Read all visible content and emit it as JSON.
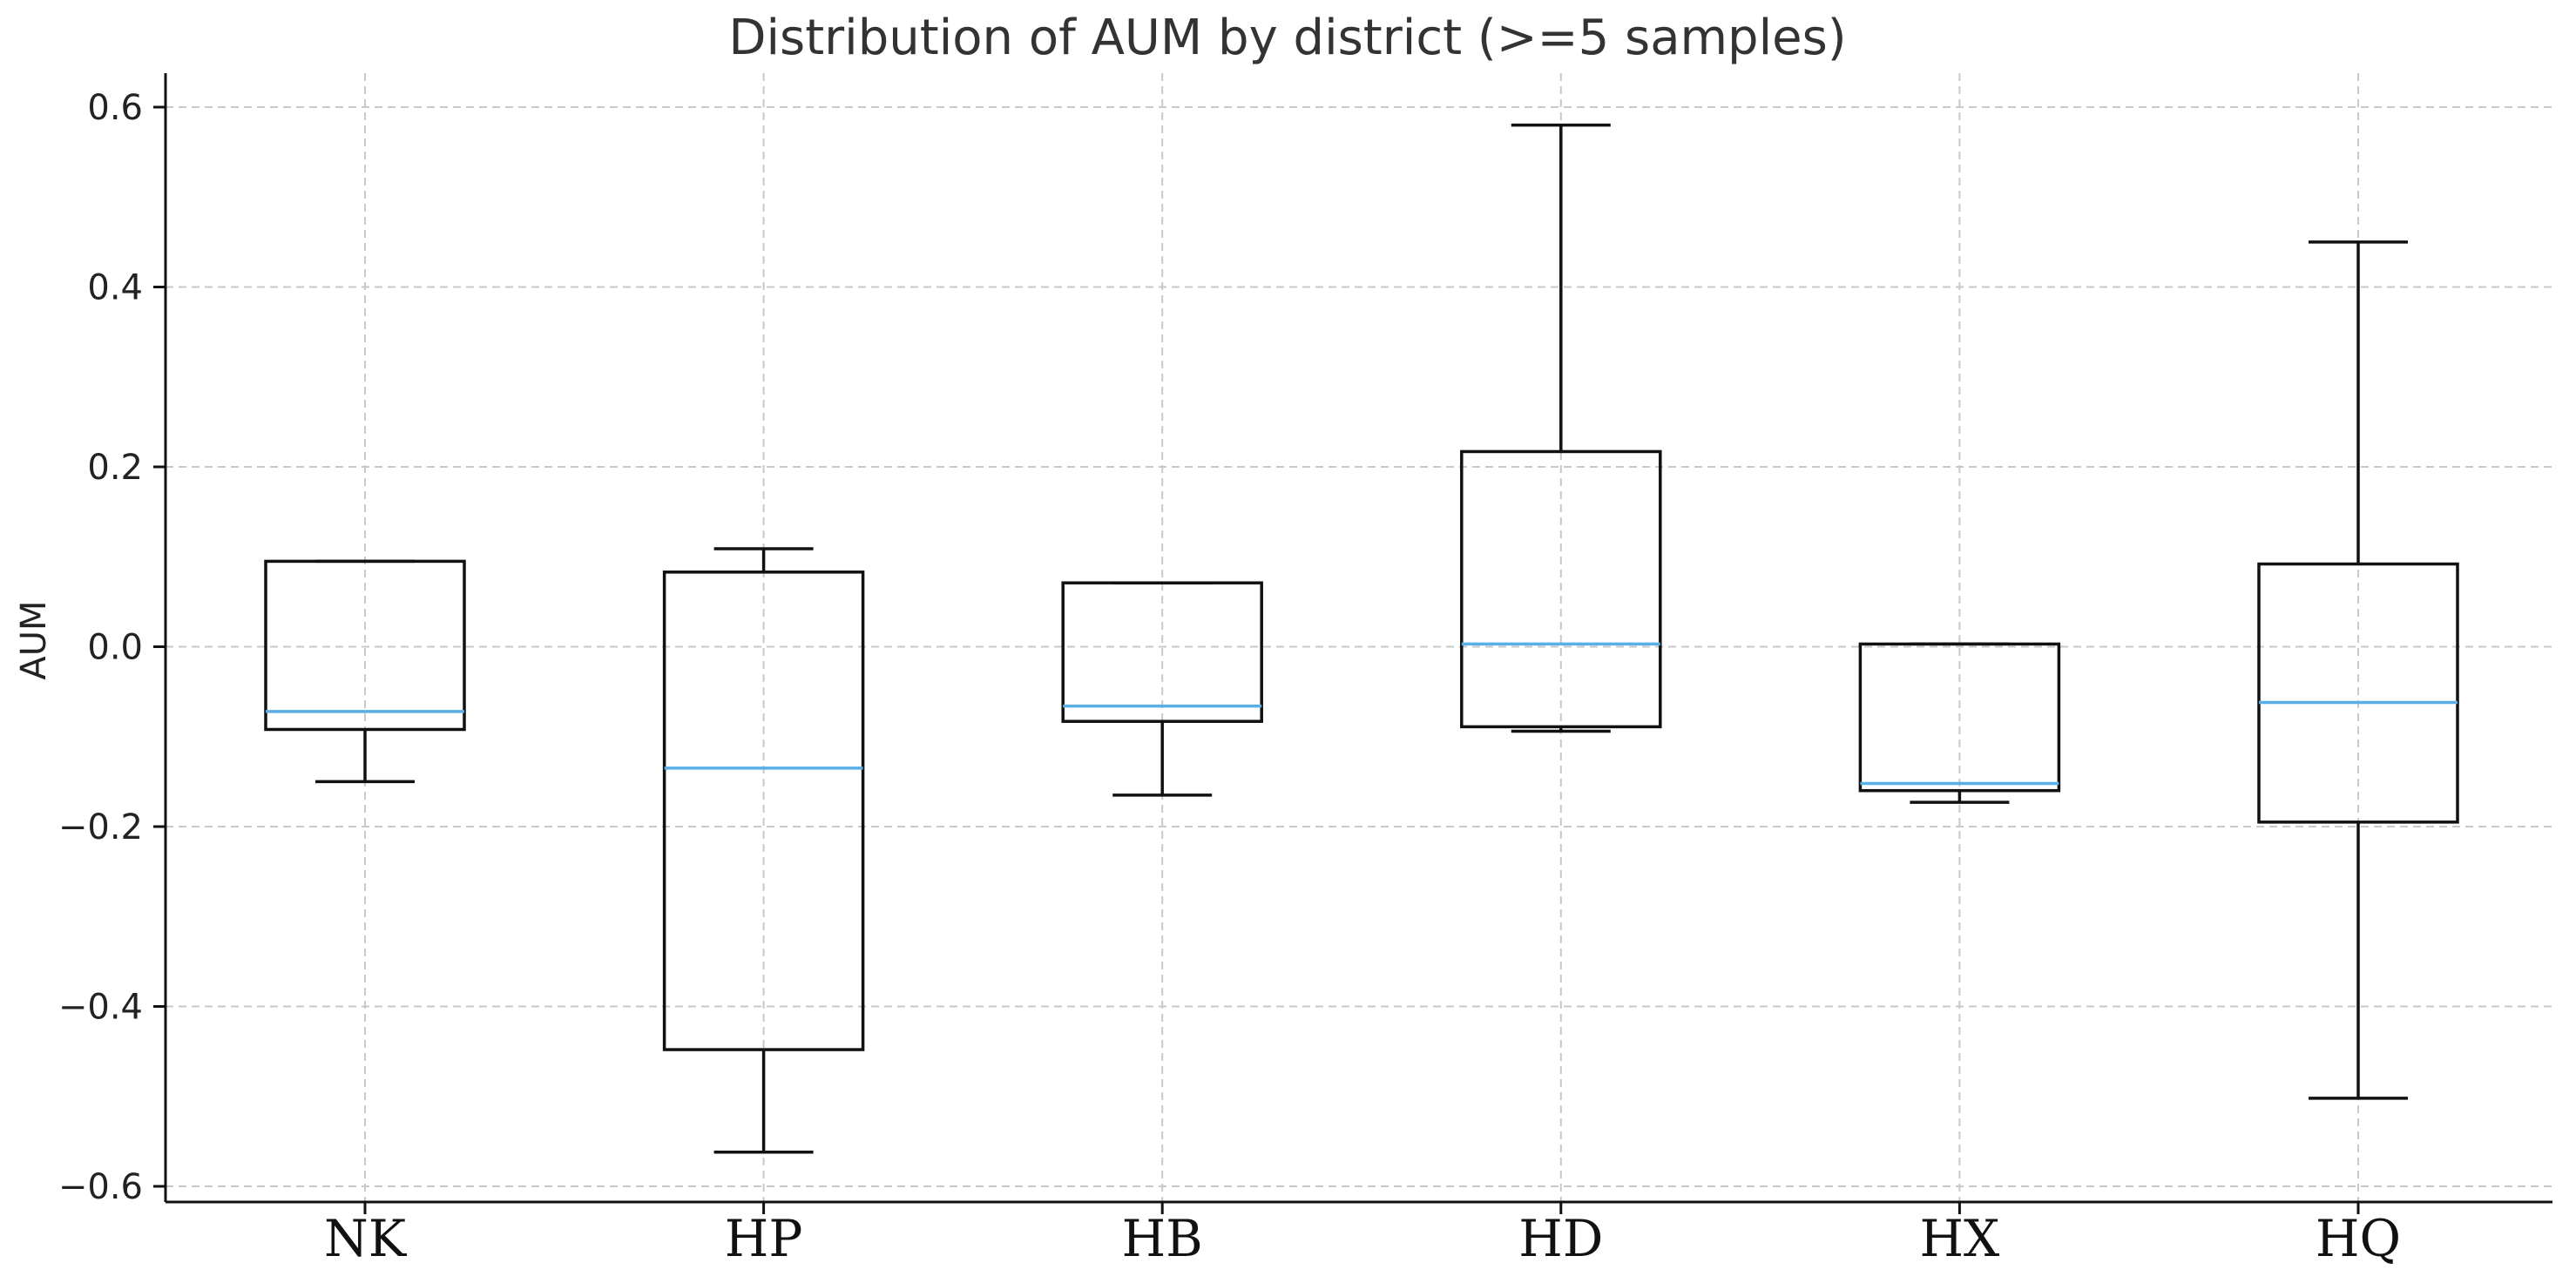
{
  "chart_data": {
    "type": "box",
    "title": "Distribution of AUM by district (>=5 samples)",
    "xlabel": "",
    "ylabel": "AUM",
    "ylim": [
      -0.62,
      0.64
    ],
    "yticks": [
      -0.6,
      -0.4,
      -0.2,
      0.0,
      0.2,
      0.4,
      0.6
    ],
    "ytick_labels": [
      "−0.6",
      "−0.4",
      "−0.2",
      "0.0",
      "0.2",
      "0.4",
      "0.6"
    ],
    "grid": true,
    "categories": [
      "NK",
      "HP",
      "HB",
      "HD",
      "HX",
      "HQ"
    ],
    "boxes": [
      {
        "category": "NK",
        "whisker_low": -0.15,
        "q1": -0.092,
        "median": -0.072,
        "q3": 0.095,
        "whisker_high": 0.095
      },
      {
        "category": "HP",
        "whisker_low": -0.562,
        "q1": -0.448,
        "median": -0.135,
        "q3": 0.083,
        "whisker_high": 0.109
      },
      {
        "category": "HB",
        "whisker_low": -0.165,
        "q1": -0.083,
        "median": -0.066,
        "q3": 0.071,
        "whisker_high": 0.071
      },
      {
        "category": "HD",
        "whisker_low": -0.094,
        "q1": -0.089,
        "median": 0.003,
        "q3": 0.217,
        "whisker_high": 0.58
      },
      {
        "category": "HX",
        "whisker_low": -0.173,
        "q1": -0.16,
        "median": -0.152,
        "q3": 0.003,
        "whisker_high": 0.003
      },
      {
        "category": "HQ",
        "whisker_low": -0.502,
        "q1": -0.195,
        "median": -0.062,
        "q3": 0.092,
        "whisker_high": 0.45
      }
    ],
    "colors": {
      "box": "#111111",
      "median": "#5aaee6",
      "grid": "#c8c8c8",
      "axis": "#111111"
    }
  }
}
